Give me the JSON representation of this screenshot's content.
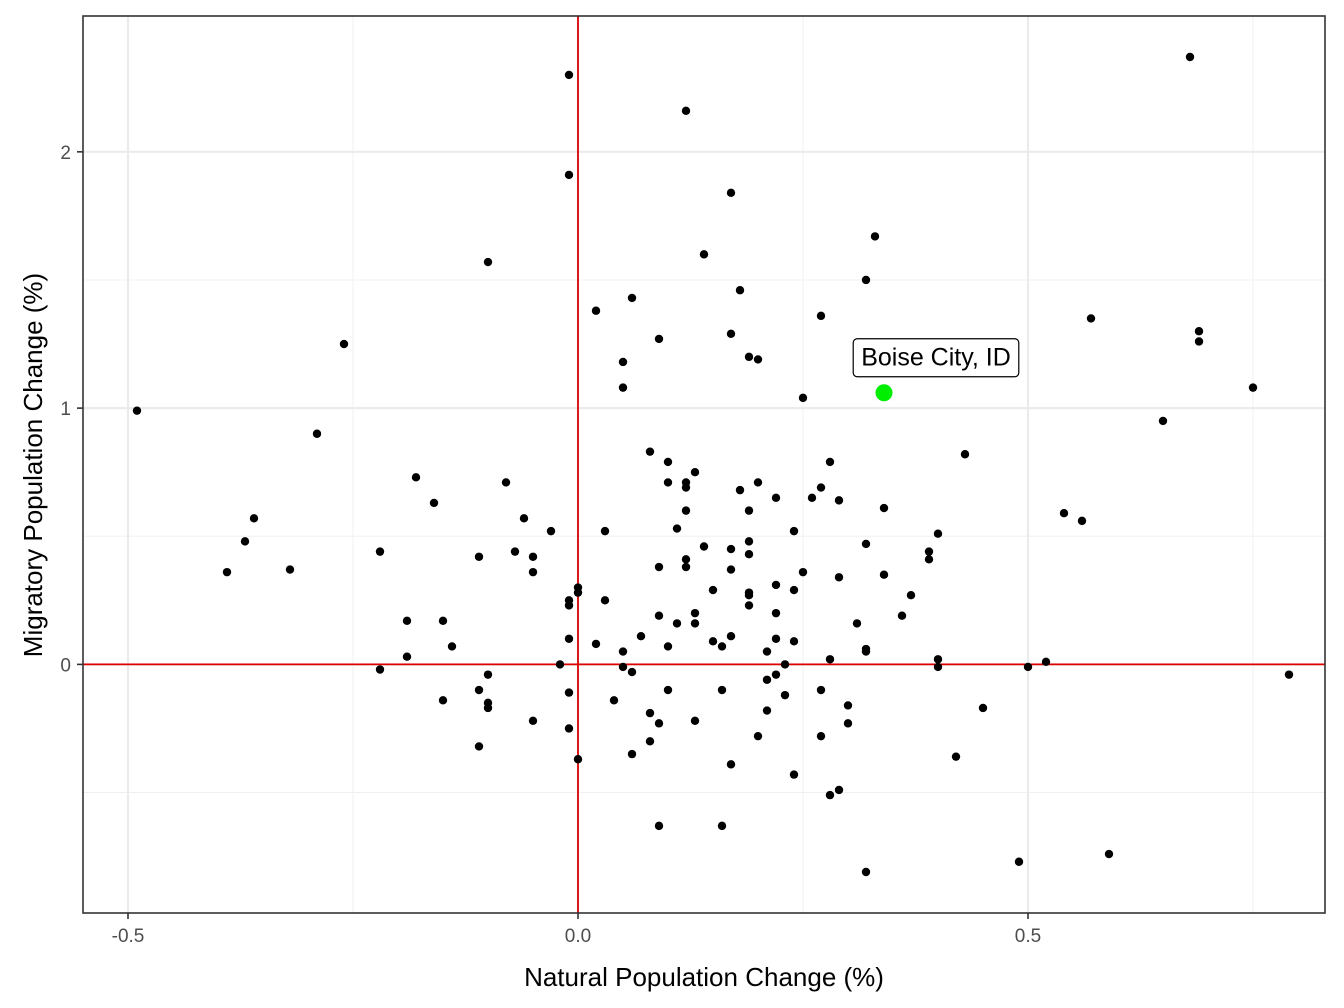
{
  "chart_data": {
    "type": "scatter",
    "xlabel": "Natural Population Change (%)",
    "ylabel": "Migratory Population Change (%)",
    "xlim": [
      -0.55,
      0.83
    ],
    "ylim": [
      -0.97,
      2.53
    ],
    "x_ticks": [
      -0.5,
      0.0,
      0.5
    ],
    "x_tick_labels": [
      "-0.5",
      "0.0",
      "0.5"
    ],
    "y_ticks": [
      0,
      1,
      2
    ],
    "y_tick_labels": [
      "0",
      "1",
      "2"
    ],
    "x_minor": [
      -0.25,
      0.25,
      0.75
    ],
    "y_minor": [
      -0.5,
      0.5,
      1.5
    ],
    "grid": true,
    "reference_lines": {
      "x": 0,
      "y": 0,
      "color": "#dd0000"
    },
    "point_color": "#000000",
    "highlight": {
      "label": "Boise City, ID",
      "x": 0.34,
      "y": 1.06,
      "color": "#00ee00"
    },
    "points": [
      [
        -0.49,
        0.99
      ],
      [
        -0.39,
        0.36
      ],
      [
        -0.37,
        0.48
      ],
      [
        -0.36,
        0.57
      ],
      [
        -0.32,
        0.37
      ],
      [
        -0.29,
        0.9
      ],
      [
        -0.26,
        1.25
      ],
      [
        -0.22,
        0.44
      ],
      [
        -0.22,
        -0.02
      ],
      [
        -0.19,
        0.17
      ],
      [
        -0.19,
        0.03
      ],
      [
        -0.18,
        0.73
      ],
      [
        -0.16,
        0.63
      ],
      [
        -0.15,
        0.17
      ],
      [
        -0.15,
        -0.14
      ],
      [
        -0.14,
        0.07
      ],
      [
        -0.11,
        0.42
      ],
      [
        -0.11,
        -0.1
      ],
      [
        -0.11,
        -0.32
      ],
      [
        -0.1,
        1.57
      ],
      [
        -0.1,
        -0.04
      ],
      [
        -0.1,
        -0.15
      ],
      [
        -0.1,
        -0.17
      ],
      [
        -0.08,
        0.71
      ],
      [
        -0.07,
        0.44
      ],
      [
        -0.06,
        0.57
      ],
      [
        -0.05,
        0.42
      ],
      [
        -0.05,
        0.36
      ],
      [
        -0.05,
        -0.22
      ],
      [
        -0.03,
        0.52
      ],
      [
        -0.02,
        0.0
      ],
      [
        -0.01,
        2.3
      ],
      [
        -0.01,
        1.91
      ],
      [
        -0.01,
        0.25
      ],
      [
        -0.01,
        0.23
      ],
      [
        -0.01,
        0.1
      ],
      [
        -0.01,
        -0.11
      ],
      [
        -0.01,
        -0.25
      ],
      [
        0.0,
        0.3
      ],
      [
        0.0,
        0.28
      ],
      [
        0.0,
        -0.37
      ],
      [
        0.02,
        1.38
      ],
      [
        0.02,
        0.08
      ],
      [
        0.03,
        0.52
      ],
      [
        0.03,
        0.25
      ],
      [
        0.04,
        -0.14
      ],
      [
        0.05,
        1.18
      ],
      [
        0.05,
        1.08
      ],
      [
        0.05,
        0.05
      ],
      [
        0.05,
        -0.01
      ],
      [
        0.06,
        1.43
      ],
      [
        0.06,
        -0.03
      ],
      [
        0.06,
        -0.35
      ],
      [
        0.07,
        0.11
      ],
      [
        0.08,
        0.83
      ],
      [
        0.08,
        -0.19
      ],
      [
        0.08,
        -0.3
      ],
      [
        0.09,
        1.27
      ],
      [
        0.09,
        0.38
      ],
      [
        0.09,
        0.19
      ],
      [
        0.09,
        -0.23
      ],
      [
        0.09,
        -0.63
      ],
      [
        0.1,
        0.79
      ],
      [
        0.1,
        0.71
      ],
      [
        0.1,
        0.07
      ],
      [
        0.1,
        -0.1
      ],
      [
        0.11,
        0.53
      ],
      [
        0.11,
        0.16
      ],
      [
        0.12,
        2.16
      ],
      [
        0.12,
        0.71
      ],
      [
        0.12,
        0.69
      ],
      [
        0.12,
        0.6
      ],
      [
        0.12,
        0.41
      ],
      [
        0.12,
        0.38
      ],
      [
        0.13,
        0.75
      ],
      [
        0.13,
        0.2
      ],
      [
        0.13,
        0.16
      ],
      [
        0.13,
        -0.22
      ],
      [
        0.14,
        1.6
      ],
      [
        0.14,
        0.46
      ],
      [
        0.15,
        0.29
      ],
      [
        0.15,
        0.09
      ],
      [
        0.16,
        0.07
      ],
      [
        0.16,
        -0.1
      ],
      [
        0.16,
        -0.63
      ],
      [
        0.17,
        1.84
      ],
      [
        0.17,
        1.29
      ],
      [
        0.17,
        0.45
      ],
      [
        0.17,
        0.37
      ],
      [
        0.17,
        0.11
      ],
      [
        0.17,
        -0.39
      ],
      [
        0.18,
        1.46
      ],
      [
        0.18,
        0.68
      ],
      [
        0.19,
        1.2
      ],
      [
        0.19,
        0.6
      ],
      [
        0.19,
        0.48
      ],
      [
        0.19,
        0.43
      ],
      [
        0.19,
        0.28
      ],
      [
        0.19,
        0.27
      ],
      [
        0.19,
        0.23
      ],
      [
        0.2,
        1.19
      ],
      [
        0.2,
        0.71
      ],
      [
        0.2,
        -0.28
      ],
      [
        0.21,
        0.05
      ],
      [
        0.21,
        -0.06
      ],
      [
        0.21,
        -0.18
      ],
      [
        0.22,
        0.65
      ],
      [
        0.22,
        0.31
      ],
      [
        0.22,
        0.2
      ],
      [
        0.22,
        0.1
      ],
      [
        0.22,
        -0.04
      ],
      [
        0.23,
        0.0
      ],
      [
        0.23,
        -0.12
      ],
      [
        0.24,
        0.52
      ],
      [
        0.24,
        0.29
      ],
      [
        0.24,
        0.09
      ],
      [
        0.24,
        -0.43
      ],
      [
        0.25,
        1.04
      ],
      [
        0.25,
        0.36
      ],
      [
        0.26,
        0.65
      ],
      [
        0.27,
        1.36
      ],
      [
        0.27,
        0.69
      ],
      [
        0.27,
        -0.1
      ],
      [
        0.27,
        -0.28
      ],
      [
        0.28,
        0.79
      ],
      [
        0.28,
        0.02
      ],
      [
        0.28,
        -0.51
      ],
      [
        0.29,
        0.64
      ],
      [
        0.29,
        0.34
      ],
      [
        0.29,
        -0.49
      ],
      [
        0.3,
        -0.16
      ],
      [
        0.3,
        -0.23
      ],
      [
        0.31,
        0.16
      ],
      [
        0.32,
        1.5
      ],
      [
        0.32,
        0.47
      ],
      [
        0.32,
        0.06
      ],
      [
        0.32,
        0.05
      ],
      [
        0.32,
        -0.81
      ],
      [
        0.33,
        1.67
      ],
      [
        0.34,
        0.61
      ],
      [
        0.34,
        0.35
      ],
      [
        0.36,
        0.19
      ],
      [
        0.37,
        0.27
      ],
      [
        0.39,
        0.44
      ],
      [
        0.39,
        0.41
      ],
      [
        0.4,
        0.51
      ],
      [
        0.4,
        0.02
      ],
      [
        0.4,
        -0.01
      ],
      [
        0.42,
        -0.36
      ],
      [
        0.43,
        0.82
      ],
      [
        0.45,
        -0.17
      ],
      [
        0.49,
        -0.77
      ],
      [
        0.5,
        -0.01
      ],
      [
        0.52,
        0.01
      ],
      [
        0.54,
        0.59
      ],
      [
        0.56,
        0.56
      ],
      [
        0.57,
        1.35
      ],
      [
        0.59,
        -0.74
      ],
      [
        0.65,
        0.95
      ],
      [
        0.68,
        2.37
      ],
      [
        0.69,
        1.3
      ],
      [
        0.69,
        1.26
      ],
      [
        0.75,
        1.08
      ],
      [
        0.79,
        -0.04
      ]
    ]
  }
}
